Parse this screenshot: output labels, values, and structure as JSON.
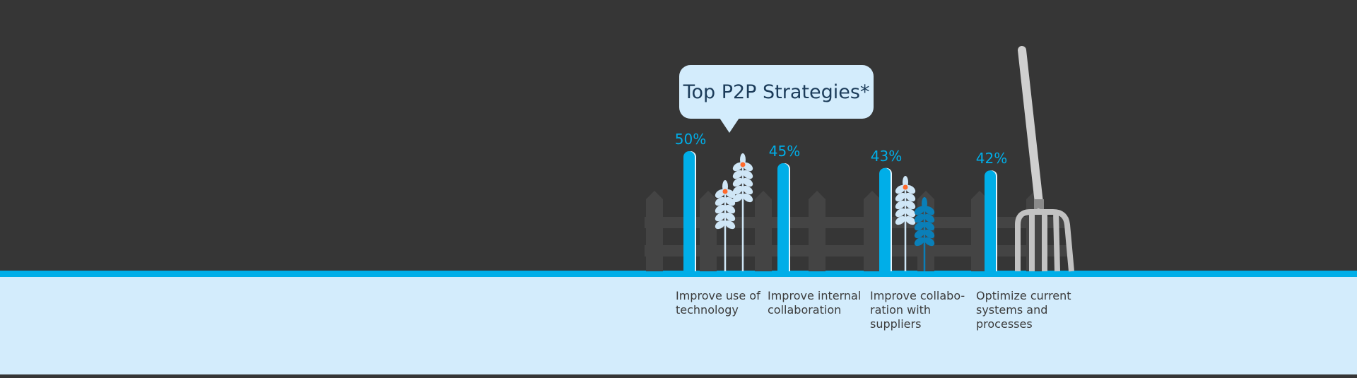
{
  "colors": {
    "background": "#363636",
    "ground": "#d3ecfc",
    "accent": "#00aee8",
    "bubble": "#d3ecfc",
    "title": "#1c3c5a",
    "fence": "#444444",
    "wheat_light": "#cfe6f6",
    "wheat_dark": "#0a7fb8",
    "seed": "#ff6a2c",
    "pitchfork": "#cfcfcf"
  },
  "icons": [
    "speech-bubble",
    "wheat-icon",
    "fence-icon",
    "pitchfork-icon"
  ],
  "chart_data": {
    "type": "bar",
    "title": "Top P2P Strategies*",
    "categories": [
      "Improve use of\ntechnology",
      "Improve internal\ncollaboration",
      "Improve collabo-\nration with\nsuppliers",
      "Optimize current\nsystems and\nprocesses"
    ],
    "values": [
      50,
      45,
      43,
      42
    ],
    "value_labels": [
      "50%",
      "45%",
      "43%",
      "42%"
    ],
    "unit": "%",
    "grid": false,
    "legend": "none"
  }
}
